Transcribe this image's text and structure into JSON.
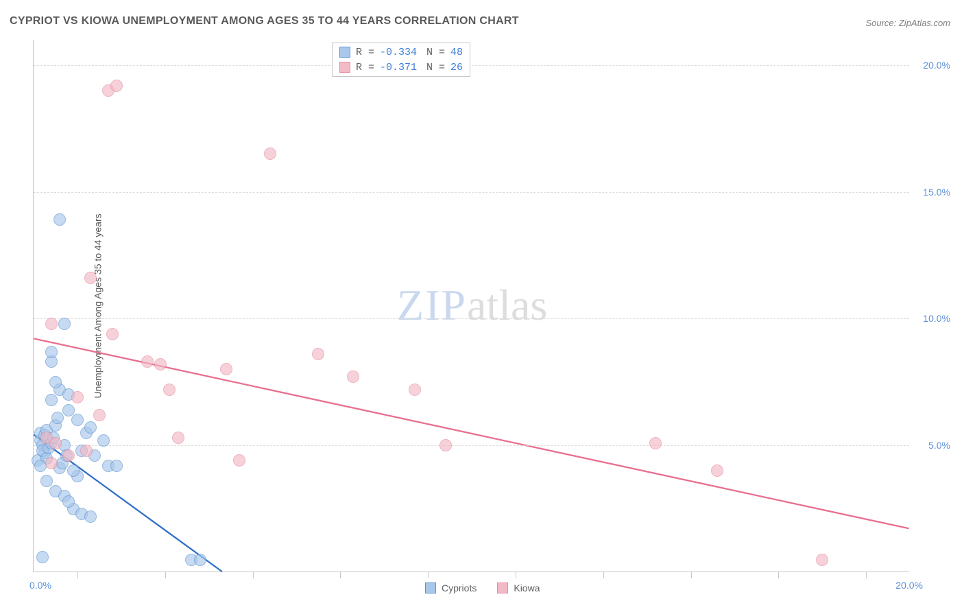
{
  "title": "CYPRIOT VS KIOWA UNEMPLOYMENT AMONG AGES 35 TO 44 YEARS CORRELATION CHART",
  "source": "Source: ZipAtlas.com",
  "ylabel": "Unemployment Among Ages 35 to 44 years",
  "watermark": {
    "part1": "ZIP",
    "part2": "atlas"
  },
  "chart": {
    "type": "scatter",
    "background_color": "#ffffff",
    "grid_color": "#dcdcdc",
    "axis_color": "#c7c7c7",
    "tick_color": "#5b8fd6",
    "marker_radius": 9,
    "xlim": [
      0,
      20
    ],
    "ylim": [
      0,
      21
    ],
    "yticks": [
      5,
      10,
      15,
      20
    ],
    "ytick_labels": [
      "5.0%",
      "10.0%",
      "15.0%",
      "20.0%"
    ],
    "xticks": [
      0,
      20
    ],
    "xtick_labels": [
      "0.0%",
      "20.0%"
    ],
    "xtick_marks": [
      1,
      3,
      5,
      7,
      9,
      11,
      13,
      15,
      17,
      19
    ],
    "series": [
      {
        "name": "Cypriots",
        "fill": "#a8c7ea",
        "stroke": "#5f94d1",
        "opacity": 0.65,
        "R": "-0.334",
        "N": "48",
        "trend": {
          "x1": 0,
          "y1": 5.4,
          "x2": 4.3,
          "y2": 0,
          "color": "#2f6fc7",
          "width": 2.3
        },
        "points": [
          [
            0.15,
            5.2
          ],
          [
            0.15,
            5.5
          ],
          [
            0.2,
            5.0
          ],
          [
            0.25,
            5.4
          ],
          [
            0.25,
            4.7
          ],
          [
            0.3,
            5.6
          ],
          [
            0.1,
            4.4
          ],
          [
            0.2,
            4.8
          ],
          [
            0.3,
            4.5
          ],
          [
            0.35,
            4.9
          ],
          [
            0.15,
            4.2
          ],
          [
            0.4,
            5.1
          ],
          [
            0.45,
            5.3
          ],
          [
            0.5,
            5.8
          ],
          [
            0.55,
            6.1
          ],
          [
            0.6,
            4.1
          ],
          [
            0.65,
            4.3
          ],
          [
            0.7,
            5.0
          ],
          [
            0.75,
            4.6
          ],
          [
            0.8,
            6.4
          ],
          [
            0.4,
            8.3
          ],
          [
            0.6,
            7.2
          ],
          [
            0.8,
            7.0
          ],
          [
            1.0,
            6.0
          ],
          [
            1.2,
            5.5
          ],
          [
            0.3,
            3.6
          ],
          [
            0.5,
            3.2
          ],
          [
            0.7,
            3.0
          ],
          [
            0.9,
            2.5
          ],
          [
            1.1,
            2.3
          ],
          [
            1.3,
            2.2
          ],
          [
            0.6,
            13.9
          ],
          [
            0.7,
            9.8
          ],
          [
            0.4,
            8.7
          ],
          [
            1.6,
            5.2
          ],
          [
            1.7,
            4.2
          ],
          [
            1.4,
            4.6
          ],
          [
            1.9,
            4.2
          ],
          [
            1.0,
            3.8
          ],
          [
            0.2,
            0.6
          ],
          [
            3.6,
            0.5
          ],
          [
            3.8,
            0.5
          ],
          [
            0.9,
            4.0
          ],
          [
            1.1,
            4.8
          ],
          [
            1.3,
            5.7
          ],
          [
            0.8,
            2.8
          ],
          [
            0.4,
            6.8
          ],
          [
            0.5,
            7.5
          ]
        ]
      },
      {
        "name": "Kiowa",
        "fill": "#f2b9c6",
        "stroke": "#e88ba1",
        "opacity": 0.65,
        "R": "-0.371",
        "N": "26",
        "trend": {
          "x1": 0,
          "y1": 9.2,
          "x2": 20,
          "y2": 1.7,
          "color": "#e86f8f",
          "width": 2.3
        },
        "points": [
          [
            0.4,
            9.8
          ],
          [
            1.7,
            19.0
          ],
          [
            1.9,
            19.2
          ],
          [
            1.3,
            11.6
          ],
          [
            1.8,
            9.4
          ],
          [
            5.4,
            16.5
          ],
          [
            2.6,
            8.3
          ],
          [
            2.9,
            8.2
          ],
          [
            3.1,
            7.2
          ],
          [
            4.4,
            8.0
          ],
          [
            1.0,
            6.9
          ],
          [
            1.5,
            6.2
          ],
          [
            0.3,
            5.3
          ],
          [
            0.5,
            5.1
          ],
          [
            0.8,
            4.6
          ],
          [
            3.3,
            5.3
          ],
          [
            4.7,
            4.4
          ],
          [
            6.5,
            8.6
          ],
          [
            7.3,
            7.7
          ],
          [
            8.7,
            7.2
          ],
          [
            9.4,
            5.0
          ],
          [
            14.2,
            5.1
          ],
          [
            15.6,
            4.0
          ],
          [
            18.0,
            0.5
          ],
          [
            1.2,
            4.8
          ],
          [
            0.4,
            4.3
          ]
        ]
      }
    ]
  },
  "upper_legend": {
    "r_label": "R =",
    "n_label": "N ="
  },
  "bottom_legend": {
    "items": [
      "Cypriots",
      "Kiowa"
    ]
  }
}
